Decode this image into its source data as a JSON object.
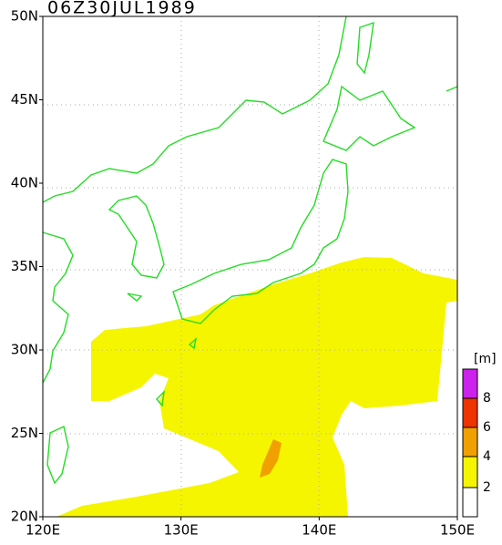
{
  "title": "06Z30JUL1989",
  "lat_labels": [
    "50N",
    "45N",
    "40N",
    "35N",
    "30N",
    "25N",
    "20N"
  ],
  "lon_labels": [
    "120E",
    "130E",
    "140E",
    "150E"
  ],
  "colorbar": {
    "unit": "[m]",
    "labels": [
      "8",
      "6",
      "4",
      "2"
    ]
  }
}
